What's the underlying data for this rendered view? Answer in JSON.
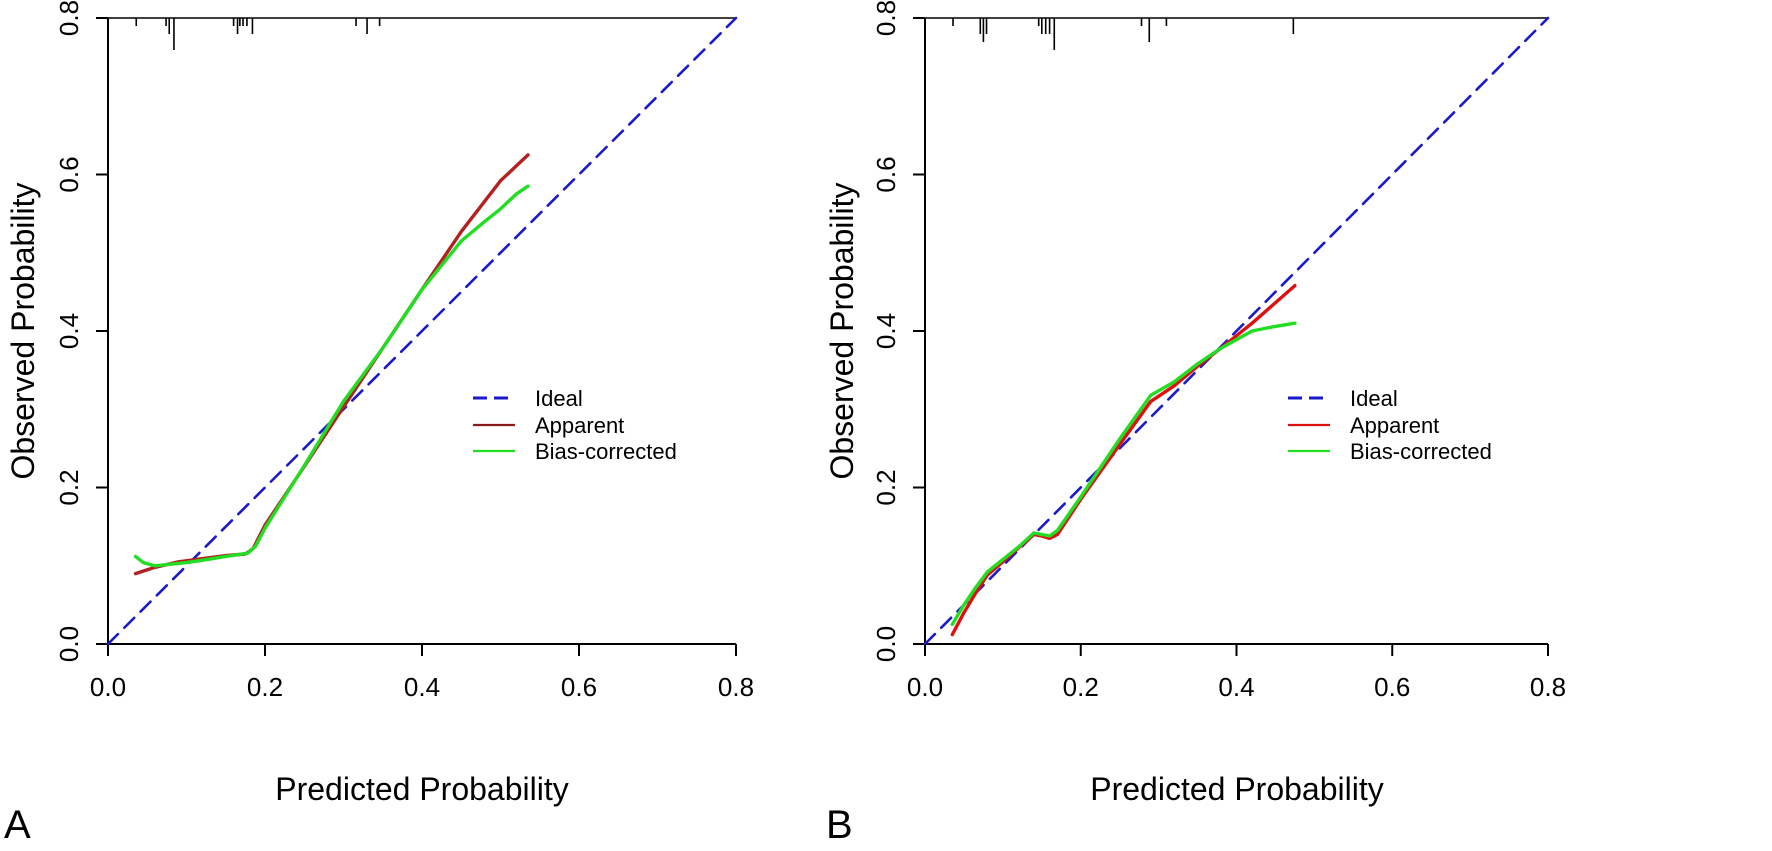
{
  "chart_data": [
    {
      "panel": "A",
      "type": "line",
      "xlabel": "Predicted Probability",
      "ylabel": "Observed Probability",
      "xlim": [
        0,
        0.8
      ],
      "ylim": [
        0,
        0.8
      ],
      "xticks": [
        "0.0",
        "0.2",
        "0.4",
        "0.6",
        "0.8"
      ],
      "yticks": [
        "0.0",
        "0.2",
        "0.4",
        "0.6",
        "0.8"
      ],
      "legend_position": "right-middle",
      "series": [
        {
          "name": "Ideal",
          "color": "#1a1acc",
          "style": "dashed",
          "x": [
            0,
            0.8
          ],
          "y": [
            0,
            0.8
          ]
        },
        {
          "name": "Apparent",
          "color": "#b22222",
          "legend_color": "#8b1a1a",
          "style": "solid",
          "x": [
            0.035,
            0.06,
            0.09,
            0.12,
            0.15,
            0.175,
            0.185,
            0.2,
            0.25,
            0.3,
            0.35,
            0.4,
            0.45,
            0.5,
            0.535
          ],
          "y": [
            0.09,
            0.098,
            0.105,
            0.109,
            0.113,
            0.115,
            0.122,
            0.152,
            0.227,
            0.303,
            0.378,
            0.453,
            0.527,
            0.592,
            0.625
          ]
        },
        {
          "name": "Bias-corrected",
          "color": "#22dd22",
          "style": "solid",
          "x": [
            0.035,
            0.045,
            0.06,
            0.08,
            0.1,
            0.12,
            0.15,
            0.178,
            0.188,
            0.2,
            0.25,
            0.3,
            0.35,
            0.4,
            0.45,
            0.48,
            0.5,
            0.52,
            0.535
          ],
          "y": [
            0.112,
            0.104,
            0.1,
            0.102,
            0.104,
            0.107,
            0.112,
            0.116,
            0.125,
            0.148,
            0.228,
            0.31,
            0.378,
            0.453,
            0.515,
            0.54,
            0.556,
            0.575,
            0.585
          ]
        }
      ],
      "rug": [
        {
          "x": 0.036,
          "len": 1
        },
        {
          "x": 0.074,
          "len": 1
        },
        {
          "x": 0.078,
          "len": 2
        },
        {
          "x": 0.084,
          "len": 4
        },
        {
          "x": 0.16,
          "len": 1
        },
        {
          "x": 0.165,
          "len": 2
        },
        {
          "x": 0.168,
          "len": 1
        },
        {
          "x": 0.172,
          "len": 1
        },
        {
          "x": 0.177,
          "len": 1
        },
        {
          "x": 0.184,
          "len": 2
        },
        {
          "x": 0.316,
          "len": 1
        },
        {
          "x": 0.33,
          "len": 2
        },
        {
          "x": 0.346,
          "len": 1
        }
      ]
    },
    {
      "panel": "B",
      "type": "line",
      "xlabel": "Predicted Probability",
      "ylabel": "Observed Probability",
      "xlim": [
        0,
        0.8
      ],
      "ylim": [
        0,
        0.8
      ],
      "xticks": [
        "0.0",
        "0.2",
        "0.4",
        "0.6",
        "0.8"
      ],
      "yticks": [
        "0.0",
        "0.2",
        "0.4",
        "0.6",
        "0.8"
      ],
      "legend_position": "right-middle",
      "series": [
        {
          "name": "Ideal",
          "color": "#1a1acc",
          "style": "dashed",
          "x": [
            0,
            0.8
          ],
          "y": [
            0,
            0.8
          ]
        },
        {
          "name": "Apparent",
          "color": "#dd1111",
          "legend_color": "#dd1111",
          "style": "solid",
          "x": [
            0.035,
            0.05,
            0.065,
            0.08,
            0.1,
            0.12,
            0.14,
            0.15,
            0.16,
            0.17,
            0.2,
            0.25,
            0.29,
            0.32,
            0.35,
            0.38,
            0.42,
            0.475
          ],
          "y": [
            0.012,
            0.04,
            0.065,
            0.088,
            0.105,
            0.123,
            0.14,
            0.138,
            0.135,
            0.14,
            0.185,
            0.255,
            0.31,
            0.33,
            0.355,
            0.378,
            0.41,
            0.458
          ]
        },
        {
          "name": "Bias-corrected",
          "color": "#22dd22",
          "style": "solid",
          "x": [
            0.035,
            0.05,
            0.065,
            0.08,
            0.1,
            0.12,
            0.14,
            0.15,
            0.16,
            0.17,
            0.2,
            0.25,
            0.29,
            0.32,
            0.35,
            0.38,
            0.42,
            0.445,
            0.475
          ],
          "y": [
            0.025,
            0.05,
            0.072,
            0.092,
            0.108,
            0.124,
            0.142,
            0.14,
            0.138,
            0.145,
            0.188,
            0.262,
            0.318,
            0.335,
            0.358,
            0.378,
            0.4,
            0.405,
            0.41
          ]
        }
      ],
      "rug": [
        {
          "x": 0.036,
          "len": 1
        },
        {
          "x": 0.071,
          "len": 2
        },
        {
          "x": 0.075,
          "len": 3
        },
        {
          "x": 0.079,
          "len": 2
        },
        {
          "x": 0.146,
          "len": 1
        },
        {
          "x": 0.15,
          "len": 2
        },
        {
          "x": 0.155,
          "len": 2
        },
        {
          "x": 0.16,
          "len": 2
        },
        {
          "x": 0.166,
          "len": 4
        },
        {
          "x": 0.278,
          "len": 1
        },
        {
          "x": 0.288,
          "len": 3
        },
        {
          "x": 0.31,
          "len": 1
        },
        {
          "x": 0.473,
          "len": 2
        }
      ]
    }
  ]
}
